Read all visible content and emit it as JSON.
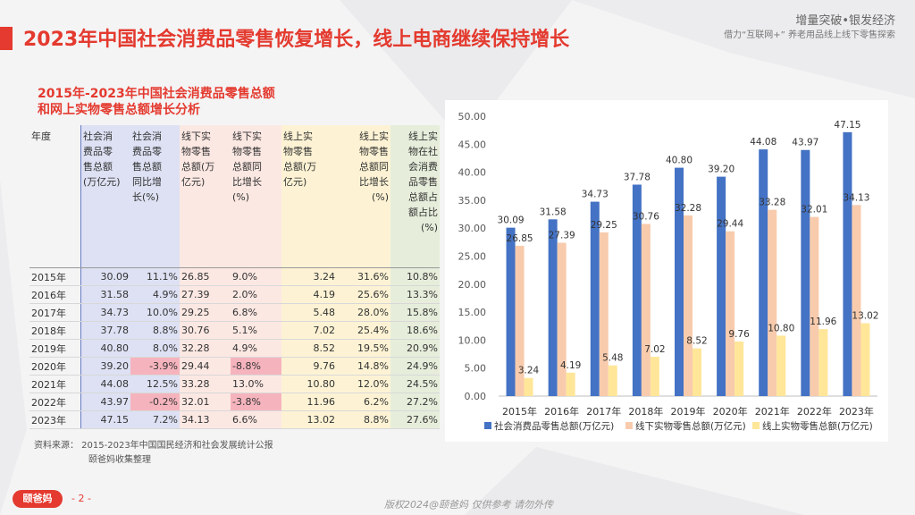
{
  "page": {
    "title": "2023年中国社会消费品零售恢复增长，线上电商继续保持增长",
    "top_right_1": "增量突破•银发经济",
    "top_right_2": "借力“互联网+” 养老用品线上线下零售探索",
    "subtitle_1": "2015年-2023年中国社会消费品零售总额",
    "subtitle_2": "和网上实物零售总额增长分析",
    "source_1": "资料来源：  2015-2023年中国国民经济和社会发展统计公报",
    "source_2": "颐爸妈收集整理",
    "logo_text": "颐爸妈",
    "page_num": "- 2 -",
    "footer": "版权2024@颐爸妈 仅供参考 请勿外传",
    "accent_color": "#e43a2f"
  },
  "table": {
    "headers": [
      "年度",
      "社会消费品零售总额(万亿元)",
      "社会消费品零售总额同比增长(%)",
      "线下实物零售总额(万亿元)",
      "线下实物零售总额同比增长(%)",
      "线上实物零售总额(万亿元)",
      "线上实物零售总额同比增长(%)",
      "线上实物在社会消费品零售总额占比(%)"
    ],
    "rows": [
      [
        "2015年",
        "30.09",
        "11.1%",
        "26.85",
        "9.0%",
        "3.24",
        "31.6%",
        "10.8%"
      ],
      [
        "2016年",
        "31.58",
        "4.9%",
        "27.39",
        "2.0%",
        "4.19",
        "25.6%",
        "13.3%"
      ],
      [
        "2017年",
        "34.73",
        "10.0%",
        "29.25",
        "6.8%",
        "5.48",
        "28.0%",
        "15.8%"
      ],
      [
        "2018年",
        "37.78",
        "8.8%",
        "30.76",
        "5.1%",
        "7.02",
        "25.4%",
        "18.6%"
      ],
      [
        "2019年",
        "40.80",
        "8.0%",
        "32.28",
        "4.9%",
        "8.52",
        "19.5%",
        "20.9%"
      ],
      [
        "2020年",
        "39.20",
        "-3.9%",
        "29.44",
        "-8.8%",
        "9.76",
        "14.8%",
        "24.9%"
      ],
      [
        "2021年",
        "44.08",
        "12.5%",
        "33.28",
        "13.0%",
        "10.80",
        "12.0%",
        "24.5%"
      ],
      [
        "2022年",
        "43.97",
        "-0.2%",
        "32.01",
        "-3.8%",
        "11.96",
        "6.2%",
        "27.2%"
      ],
      [
        "2023年",
        "47.15",
        "7.2%",
        "34.13",
        "6.6%",
        "13.02",
        "8.8%",
        "27.6%"
      ]
    ],
    "header_lines": [
      [
        "年度"
      ],
      [
        "社会消",
        "费品零",
        "售总额",
        "(万亿元)"
      ],
      [
        "社会消",
        "费品零",
        "售总额",
        "同比增",
        "长(%)"
      ],
      [
        "线下实",
        "物零售",
        "总额(万",
        "亿元)"
      ],
      [
        "线下实",
        "物零售",
        "总额同",
        "比增长",
        "(%)"
      ],
      [
        "线上实",
        "物零售",
        "总额(万",
        "亿元)"
      ],
      [
        "线上实",
        "物零售",
        "总额同",
        "比增长",
        "(%)"
      ],
      [
        "线上实",
        "物在社",
        "会消费",
        "品零售",
        "总额占",
        "额占比",
        "(%)"
      ]
    ]
  },
  "chart_data": {
    "type": "bar",
    "categories": [
      "2015年",
      "2016年",
      "2017年",
      "2018年",
      "2019年",
      "2020年",
      "2021年",
      "2022年",
      "2023年"
    ],
    "series": [
      {
        "name": "社会消费品零售总额(万亿元)",
        "values": [
          30.09,
          31.58,
          34.73,
          37.78,
          40.8,
          39.2,
          44.08,
          43.97,
          47.15
        ],
        "labels": [
          "30.09",
          "31.58",
          "34.73",
          "37.78",
          "40.80",
          "39.20",
          "44.08",
          "43.97",
          "47.15"
        ],
        "color": "#4472c4"
      },
      {
        "name": "线下实物零售总额(万亿元)",
        "values": [
          26.85,
          27.39,
          29.25,
          30.76,
          32.28,
          29.44,
          33.28,
          32.01,
          34.13
        ],
        "labels": [
          "26.85",
          "27.39",
          "29.25",
          "30.76",
          "32.28",
          "29.44",
          "33.28",
          "32.01",
          "34.13"
        ],
        "color": "#f8cbad"
      },
      {
        "name": "线上实物零售总额(万亿元)",
        "values": [
          3.24,
          4.19,
          5.48,
          7.02,
          8.52,
          9.76,
          10.8,
          11.96,
          13.02
        ],
        "labels": [
          "3.24",
          "4.19",
          "5.48",
          "7.02",
          "8.52",
          "9.76",
          "10.80",
          "11.96",
          "13.02"
        ],
        "color": "#ffe699"
      }
    ],
    "ylim": [
      0,
      50
    ],
    "yticks": [
      "0.00",
      "5.00",
      "10.00",
      "15.00",
      "20.00",
      "25.00",
      "30.00",
      "35.00",
      "40.00",
      "45.00",
      "50.00"
    ],
    "legend": "bottom",
    "grid": false
  }
}
